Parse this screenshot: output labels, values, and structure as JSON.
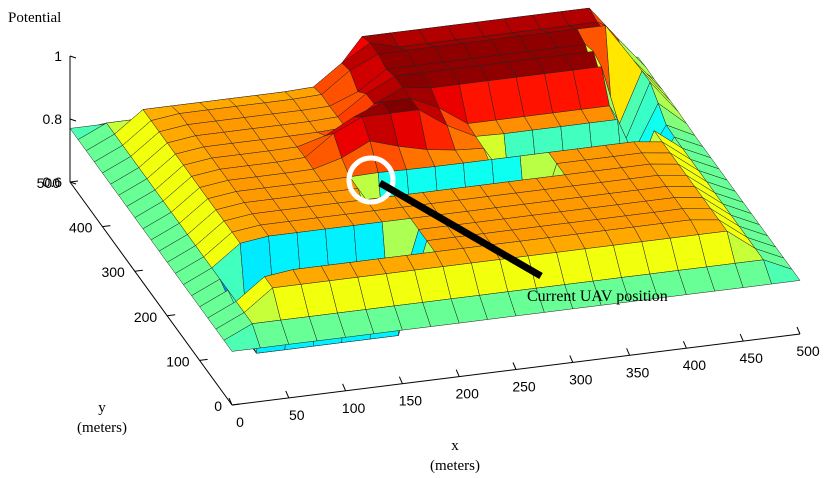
{
  "chart_data": {
    "type": "surface",
    "title": "",
    "zlabel": "Potential",
    "xlabel": "x",
    "xunit": "(meters)",
    "ylabel": "y",
    "yunit": "(meters)",
    "xlim": [
      0,
      500
    ],
    "ylim": [
      0,
      500
    ],
    "zlim": [
      0.6,
      1
    ],
    "xticks": [
      "0",
      "50",
      "100",
      "150",
      "200",
      "250",
      "300",
      "350",
      "400",
      "450",
      "500"
    ],
    "yticks": [
      "0",
      "100",
      "200",
      "300",
      "400",
      "500"
    ],
    "zticks": [
      "0.6",
      "0.8",
      "1"
    ],
    "grid_spacing_m": 25,
    "colormap": "jet",
    "annotation": {
      "text": "Current UAV position",
      "marker": "white-circle",
      "x": 200,
      "y": 300
    }
  }
}
